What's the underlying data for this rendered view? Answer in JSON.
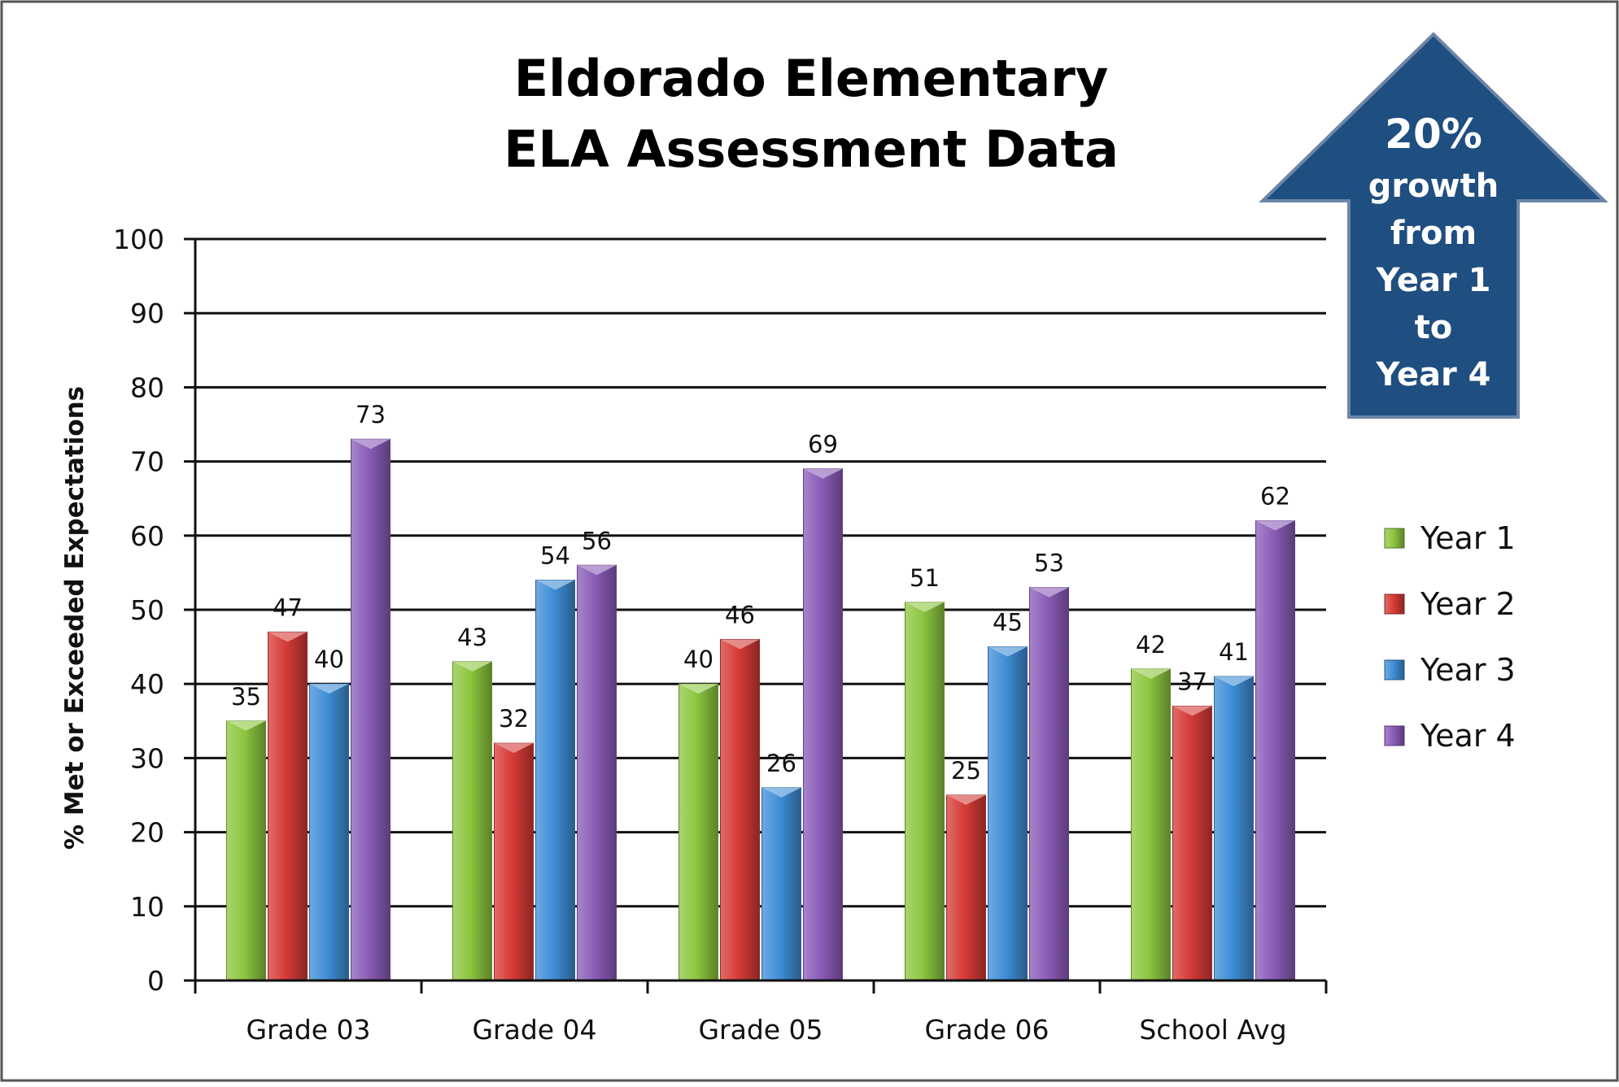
{
  "colors": {
    "year1": "#8DC63F",
    "year2": "#D63B37",
    "year3": "#3F8ED6",
    "year4": "#8A5CB8",
    "arrow": "#1F4E80",
    "arrow_border": "#6D86A8"
  },
  "callout": {
    "lines": [
      "20%",
      "growth",
      "from",
      "Year 1",
      "to",
      "Year 4"
    ]
  },
  "chart_data": {
    "type": "bar",
    "title": [
      "Eldorado Elementary",
      "ELA Assessment Data"
    ],
    "ylabel": "% Met or Exceeded Expectations",
    "xlabel": "",
    "ylim": [
      0,
      100
    ],
    "yticks": [
      0,
      10,
      20,
      30,
      40,
      50,
      60,
      70,
      80,
      90,
      100
    ],
    "grid": true,
    "legend_position": "right",
    "categories": [
      "Grade 03",
      "Grade 04",
      "Grade 05",
      "Grade 06",
      "School Avg"
    ],
    "series": [
      {
        "name": "Year 1",
        "color_key": "year1",
        "values": [
          35,
          43,
          40,
          51,
          42
        ]
      },
      {
        "name": "Year 2",
        "color_key": "year2",
        "values": [
          47,
          32,
          46,
          25,
          37
        ]
      },
      {
        "name": "Year 3",
        "color_key": "year3",
        "values": [
          40,
          54,
          26,
          45,
          41
        ]
      },
      {
        "name": "Year 4",
        "color_key": "year4",
        "values": [
          73,
          56,
          69,
          53,
          62
        ]
      }
    ]
  }
}
